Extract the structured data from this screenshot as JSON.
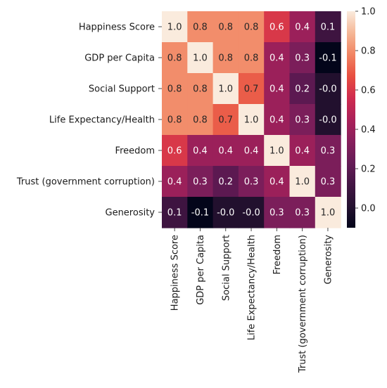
{
  "chart_data": {
    "type": "heatmap",
    "title": "",
    "xlabel": "",
    "ylabel": "",
    "rows": [
      "Happiness Score",
      "GDP per Capita",
      "Social Support",
      "Life Expectancy/Health",
      "Freedom",
      "Trust (government corruption)",
      "Generosity"
    ],
    "columns": [
      "Happiness Score",
      "GDP per Capita",
      "Social Support",
      "Life Expectancy/Health",
      "Freedom",
      "Trust (government corruption)",
      "Generosity"
    ],
    "values": [
      [
        1.0,
        0.8,
        0.8,
        0.8,
        0.6,
        0.4,
        0.1
      ],
      [
        0.8,
        1.0,
        0.8,
        0.8,
        0.4,
        0.3,
        -0.1
      ],
      [
        0.8,
        0.8,
        1.0,
        0.7,
        0.4,
        0.2,
        -0.0
      ],
      [
        0.8,
        0.8,
        0.7,
        1.0,
        0.4,
        0.3,
        -0.0
      ],
      [
        0.6,
        0.4,
        0.4,
        0.4,
        1.0,
        0.4,
        0.3
      ],
      [
        0.4,
        0.3,
        0.2,
        0.3,
        0.4,
        1.0,
        0.3
      ],
      [
        0.1,
        -0.1,
        -0.0,
        -0.0,
        0.3,
        0.3,
        1.0
      ]
    ],
    "annotation_format": "0.0",
    "colormap": "rocket",
    "colorbar": {
      "range": [
        -0.1,
        1.0
      ],
      "ticks": [
        0.0,
        0.2,
        0.4,
        0.6,
        0.8,
        1.0
      ],
      "tick_labels": [
        "0.0",
        "0.2",
        "0.4",
        "0.6",
        "0.8",
        "1.0"
      ]
    }
  }
}
